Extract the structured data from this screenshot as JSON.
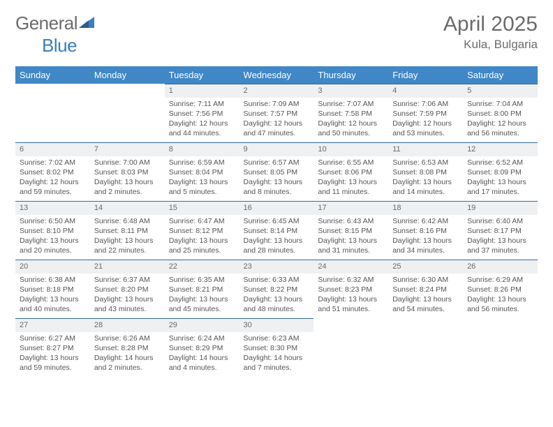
{
  "logo": {
    "word1": "General",
    "word2": "Blue"
  },
  "title": "April 2025",
  "location": "Kula, Bulgaria",
  "colors": {
    "header_bg": "#3f87c7",
    "header_text": "#ffffff",
    "daynum_bg": "#eef0f2",
    "row_border": "#2f6aa0",
    "body_text": "#555555",
    "title_text": "#6b6b6b"
  },
  "day_headers": [
    "Sunday",
    "Monday",
    "Tuesday",
    "Wednesday",
    "Thursday",
    "Friday",
    "Saturday"
  ],
  "weeks": [
    [
      {
        "n": "",
        "sr": "",
        "ss": "",
        "dl": ""
      },
      {
        "n": "",
        "sr": "",
        "ss": "",
        "dl": ""
      },
      {
        "n": "1",
        "sr": "Sunrise: 7:11 AM",
        "ss": "Sunset: 7:56 PM",
        "dl": "Daylight: 12 hours and 44 minutes."
      },
      {
        "n": "2",
        "sr": "Sunrise: 7:09 AM",
        "ss": "Sunset: 7:57 PM",
        "dl": "Daylight: 12 hours and 47 minutes."
      },
      {
        "n": "3",
        "sr": "Sunrise: 7:07 AM",
        "ss": "Sunset: 7:58 PM",
        "dl": "Daylight: 12 hours and 50 minutes."
      },
      {
        "n": "4",
        "sr": "Sunrise: 7:06 AM",
        "ss": "Sunset: 7:59 PM",
        "dl": "Daylight: 12 hours and 53 minutes."
      },
      {
        "n": "5",
        "sr": "Sunrise: 7:04 AM",
        "ss": "Sunset: 8:00 PM",
        "dl": "Daylight: 12 hours and 56 minutes."
      }
    ],
    [
      {
        "n": "6",
        "sr": "Sunrise: 7:02 AM",
        "ss": "Sunset: 8:02 PM",
        "dl": "Daylight: 12 hours and 59 minutes."
      },
      {
        "n": "7",
        "sr": "Sunrise: 7:00 AM",
        "ss": "Sunset: 8:03 PM",
        "dl": "Daylight: 13 hours and 2 minutes."
      },
      {
        "n": "8",
        "sr": "Sunrise: 6:59 AM",
        "ss": "Sunset: 8:04 PM",
        "dl": "Daylight: 13 hours and 5 minutes."
      },
      {
        "n": "9",
        "sr": "Sunrise: 6:57 AM",
        "ss": "Sunset: 8:05 PM",
        "dl": "Daylight: 13 hours and 8 minutes."
      },
      {
        "n": "10",
        "sr": "Sunrise: 6:55 AM",
        "ss": "Sunset: 8:06 PM",
        "dl": "Daylight: 13 hours and 11 minutes."
      },
      {
        "n": "11",
        "sr": "Sunrise: 6:53 AM",
        "ss": "Sunset: 8:08 PM",
        "dl": "Daylight: 13 hours and 14 minutes."
      },
      {
        "n": "12",
        "sr": "Sunrise: 6:52 AM",
        "ss": "Sunset: 8:09 PM",
        "dl": "Daylight: 13 hours and 17 minutes."
      }
    ],
    [
      {
        "n": "13",
        "sr": "Sunrise: 6:50 AM",
        "ss": "Sunset: 8:10 PM",
        "dl": "Daylight: 13 hours and 20 minutes."
      },
      {
        "n": "14",
        "sr": "Sunrise: 6:48 AM",
        "ss": "Sunset: 8:11 PM",
        "dl": "Daylight: 13 hours and 22 minutes."
      },
      {
        "n": "15",
        "sr": "Sunrise: 6:47 AM",
        "ss": "Sunset: 8:12 PM",
        "dl": "Daylight: 13 hours and 25 minutes."
      },
      {
        "n": "16",
        "sr": "Sunrise: 6:45 AM",
        "ss": "Sunset: 8:14 PM",
        "dl": "Daylight: 13 hours and 28 minutes."
      },
      {
        "n": "17",
        "sr": "Sunrise: 6:43 AM",
        "ss": "Sunset: 8:15 PM",
        "dl": "Daylight: 13 hours and 31 minutes."
      },
      {
        "n": "18",
        "sr": "Sunrise: 6:42 AM",
        "ss": "Sunset: 8:16 PM",
        "dl": "Daylight: 13 hours and 34 minutes."
      },
      {
        "n": "19",
        "sr": "Sunrise: 6:40 AM",
        "ss": "Sunset: 8:17 PM",
        "dl": "Daylight: 13 hours and 37 minutes."
      }
    ],
    [
      {
        "n": "20",
        "sr": "Sunrise: 6:38 AM",
        "ss": "Sunset: 8:18 PM",
        "dl": "Daylight: 13 hours and 40 minutes."
      },
      {
        "n": "21",
        "sr": "Sunrise: 6:37 AM",
        "ss": "Sunset: 8:20 PM",
        "dl": "Daylight: 13 hours and 43 minutes."
      },
      {
        "n": "22",
        "sr": "Sunrise: 6:35 AM",
        "ss": "Sunset: 8:21 PM",
        "dl": "Daylight: 13 hours and 45 minutes."
      },
      {
        "n": "23",
        "sr": "Sunrise: 6:33 AM",
        "ss": "Sunset: 8:22 PM",
        "dl": "Daylight: 13 hours and 48 minutes."
      },
      {
        "n": "24",
        "sr": "Sunrise: 6:32 AM",
        "ss": "Sunset: 8:23 PM",
        "dl": "Daylight: 13 hours and 51 minutes."
      },
      {
        "n": "25",
        "sr": "Sunrise: 6:30 AM",
        "ss": "Sunset: 8:24 PM",
        "dl": "Daylight: 13 hours and 54 minutes."
      },
      {
        "n": "26",
        "sr": "Sunrise: 6:29 AM",
        "ss": "Sunset: 8:26 PM",
        "dl": "Daylight: 13 hours and 56 minutes."
      }
    ],
    [
      {
        "n": "27",
        "sr": "Sunrise: 6:27 AM",
        "ss": "Sunset: 8:27 PM",
        "dl": "Daylight: 13 hours and 59 minutes."
      },
      {
        "n": "28",
        "sr": "Sunrise: 6:26 AM",
        "ss": "Sunset: 8:28 PM",
        "dl": "Daylight: 14 hours and 2 minutes."
      },
      {
        "n": "29",
        "sr": "Sunrise: 6:24 AM",
        "ss": "Sunset: 8:29 PM",
        "dl": "Daylight: 14 hours and 4 minutes."
      },
      {
        "n": "30",
        "sr": "Sunrise: 6:23 AM",
        "ss": "Sunset: 8:30 PM",
        "dl": "Daylight: 14 hours and 7 minutes."
      },
      {
        "n": "",
        "sr": "",
        "ss": "",
        "dl": ""
      },
      {
        "n": "",
        "sr": "",
        "ss": "",
        "dl": ""
      },
      {
        "n": "",
        "sr": "",
        "ss": "",
        "dl": ""
      }
    ]
  ]
}
